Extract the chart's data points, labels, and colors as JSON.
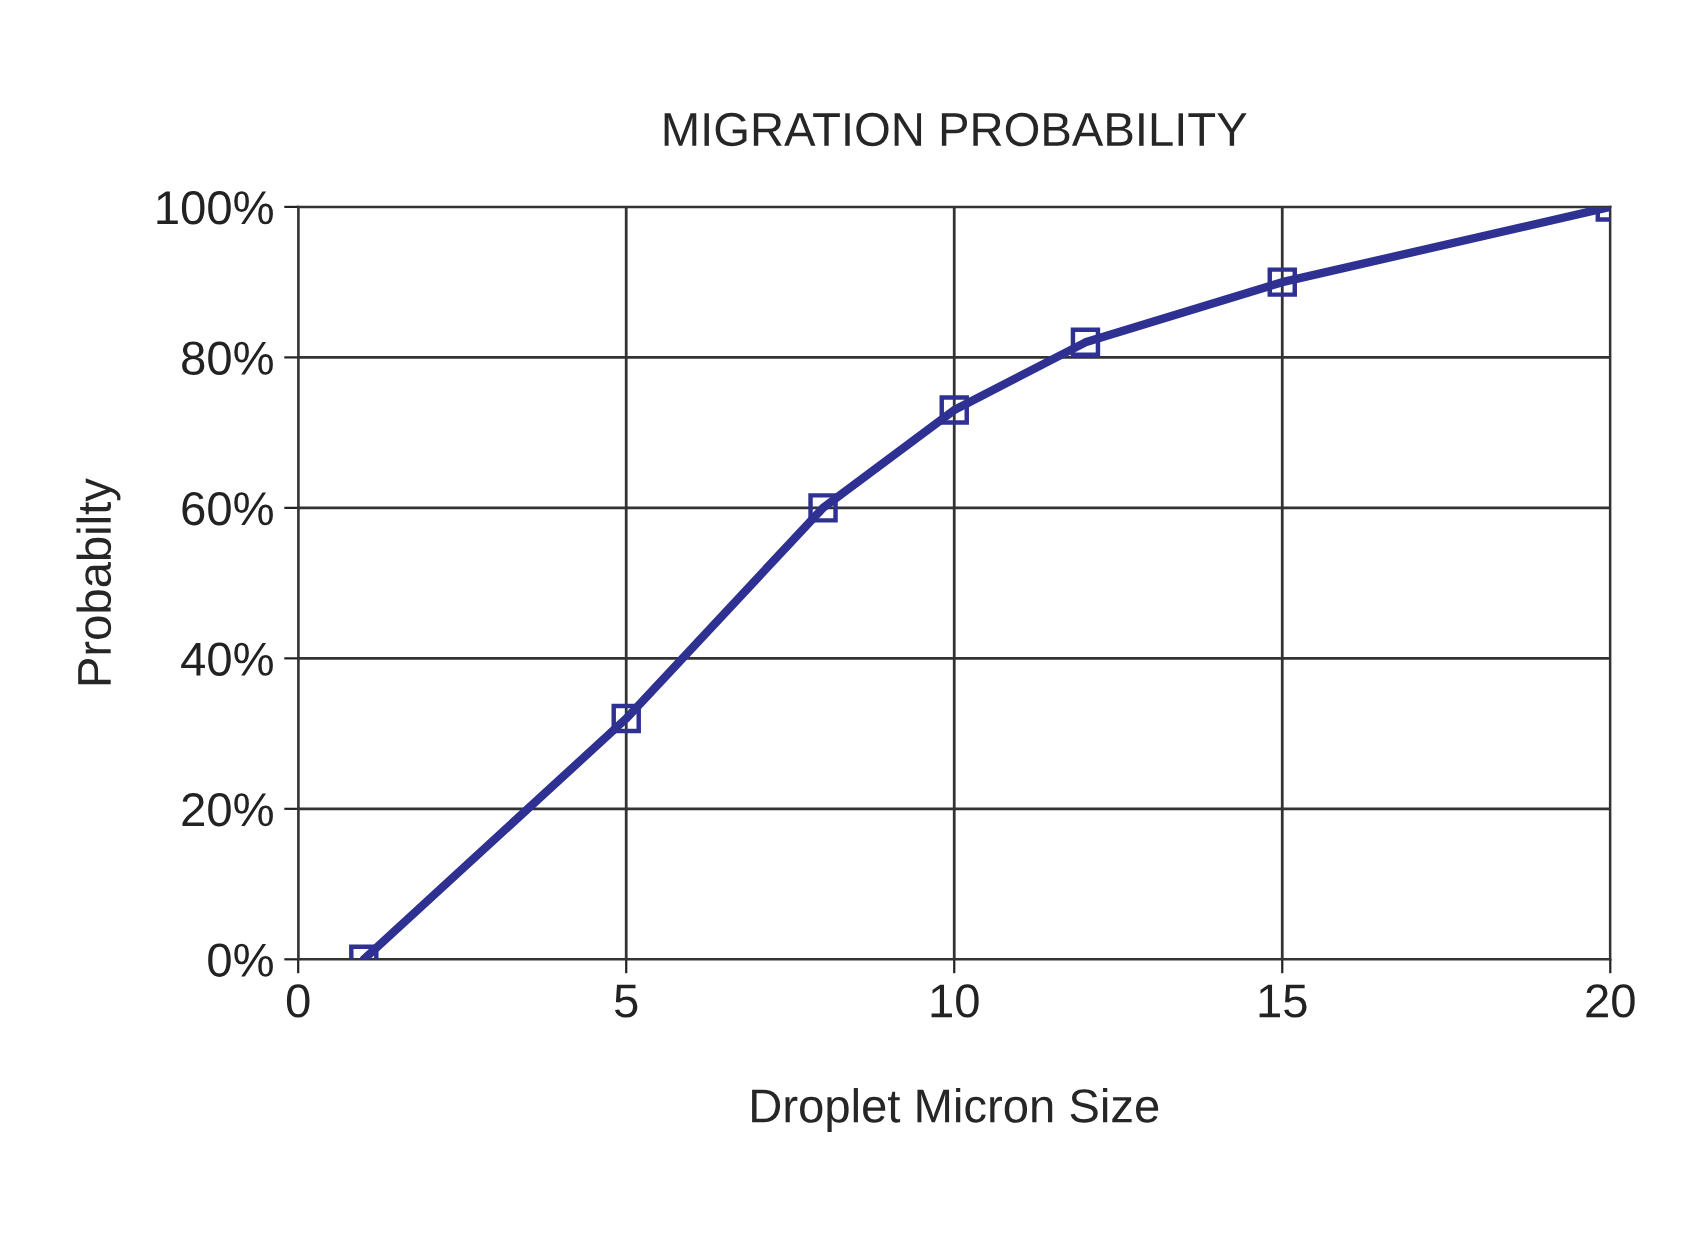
{
  "chart_data": {
    "type": "line",
    "title": "MIGRATION PROBABILITY",
    "xlabel": "Droplet Micron Size",
    "ylabel": "Probabilty",
    "x": [
      1,
      5,
      8,
      10,
      12,
      15,
      20
    ],
    "series": [
      {
        "color": "#2e3192",
        "values": [
          0,
          32,
          60,
          73,
          82,
          90,
          100
        ]
      }
    ],
    "xlim": [
      0,
      20
    ],
    "xticks": [
      0,
      5,
      10,
      15,
      20
    ],
    "ylim": [
      0,
      100
    ],
    "yticks": [
      {
        "value": 0,
        "label": "0%"
      },
      {
        "value": 20,
        "label": "20%"
      },
      {
        "value": 40,
        "label": "40%"
      },
      {
        "value": 60,
        "label": "60%"
      },
      {
        "value": 80,
        "label": "80%"
      },
      {
        "value": 100,
        "label": "100%"
      }
    ],
    "grid": true,
    "legend": false,
    "marker": "square",
    "line_style": "solid"
  }
}
